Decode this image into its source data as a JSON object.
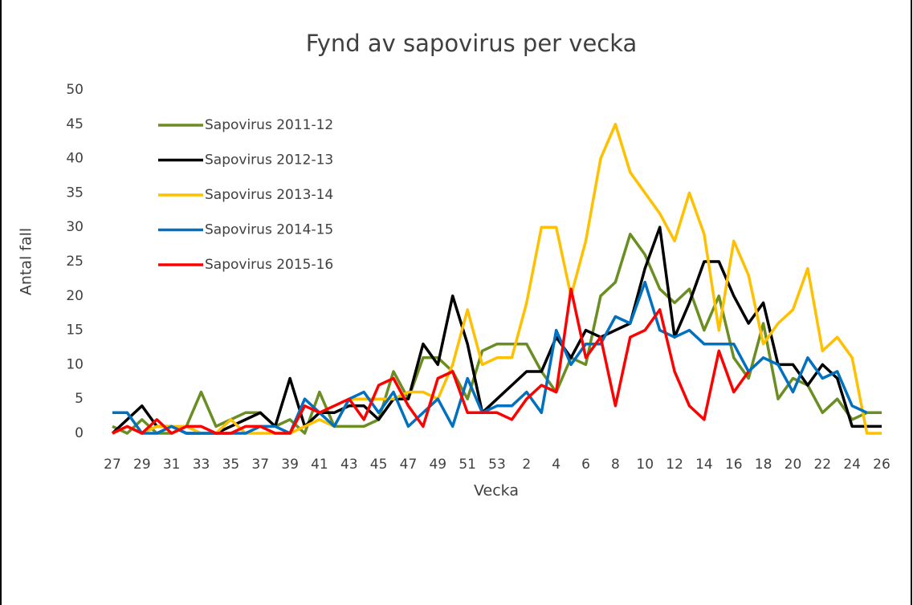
{
  "chart_data": {
    "type": "line",
    "title": "Fynd av sapovirus per vecka",
    "x_label": "Vecka",
    "y_label": "Antal fall",
    "categories": [
      27,
      null,
      29,
      null,
      31,
      null,
      33,
      null,
      35,
      null,
      37,
      null,
      39,
      null,
      41,
      null,
      43,
      null,
      45,
      null,
      47,
      null,
      49,
      null,
      51,
      null,
      53,
      null,
      2,
      null,
      4,
      null,
      6,
      null,
      8,
      null,
      10,
      null,
      12,
      null,
      14,
      null,
      16,
      null,
      18,
      null,
      20,
      null,
      22,
      null,
      24,
      null,
      26
    ],
    "ylim": [
      0,
      50
    ],
    "yticks": [
      0,
      5,
      10,
      15,
      20,
      25,
      30,
      35,
      40,
      45,
      50
    ],
    "grid": false,
    "legend": "upper-left",
    "series": [
      {
        "name": "Sapovirus 2011-12",
        "color": "#6b8e23",
        "values": [
          1,
          0,
          2,
          0,
          0,
          1,
          6,
          1,
          2,
          3,
          3,
          1,
          2,
          0,
          6,
          1,
          1,
          1,
          2,
          9,
          5,
          11,
          11,
          9,
          5,
          12,
          13,
          13,
          13,
          9,
          6,
          11,
          10,
          20,
          22,
          29,
          26,
          21,
          19,
          21,
          15,
          20,
          11,
          8,
          16,
          5,
          8,
          7,
          3,
          5,
          2,
          3,
          3
        ]
      },
      {
        "name": "Sapovirus 2012-13",
        "color": "#000000",
        "values": [
          0,
          2,
          4,
          1,
          1,
          0,
          0,
          0,
          1,
          2,
          3,
          1,
          8,
          1,
          3,
          3,
          4,
          4,
          2,
          5,
          5,
          13,
          10,
          20,
          13,
          3,
          5,
          7,
          9,
          9,
          14,
          11,
          15,
          14,
          15,
          16,
          24,
          30,
          14,
          19,
          25,
          25,
          20,
          16,
          19,
          10,
          10,
          7,
          10,
          8,
          1,
          1,
          1
        ]
      },
      {
        "name": "Sapovirus 2013-14",
        "color": "#ffc000",
        "values": [
          0,
          1,
          0,
          1,
          1,
          1,
          0,
          0,
          2,
          0,
          0,
          0,
          0,
          1,
          2,
          1,
          5,
          5,
          5,
          5,
          6,
          6,
          5,
          10,
          18,
          10,
          11,
          11,
          19,
          30,
          30,
          20,
          28,
          40,
          45,
          38,
          35,
          32,
          28,
          35,
          29,
          15,
          28,
          23,
          13,
          16,
          18,
          24,
          12,
          14,
          11,
          0,
          0
        ]
      },
      {
        "name": "Sapovirus 2014-15",
        "color": "#0070c0",
        "values": [
          3,
          3,
          0,
          0,
          1,
          0,
          0,
          0,
          0,
          0,
          1,
          1,
          0,
          5,
          3,
          1,
          5,
          6,
          3,
          6,
          1,
          3,
          5,
          1,
          8,
          3,
          4,
          4,
          6,
          3,
          15,
          10,
          13,
          13,
          17,
          16,
          22,
          15,
          14,
          15,
          13,
          13,
          13,
          9,
          11,
          10,
          6,
          11,
          8,
          9,
          4,
          3,
          null
        ]
      },
      {
        "name": "Sapovirus 2015-16",
        "color": "#ff0000",
        "values": [
          0,
          1,
          0,
          2,
          0,
          1,
          1,
          0,
          0,
          1,
          1,
          0,
          0,
          4,
          3,
          4,
          5,
          2,
          7,
          8,
          4,
          1,
          8,
          9,
          3,
          3,
          3,
          2,
          5,
          7,
          6,
          21,
          11,
          14,
          4,
          14,
          15,
          18,
          9,
          4,
          2,
          12,
          6,
          9,
          null,
          null,
          null,
          null,
          null,
          null,
          null,
          null,
          null
        ]
      }
    ]
  }
}
